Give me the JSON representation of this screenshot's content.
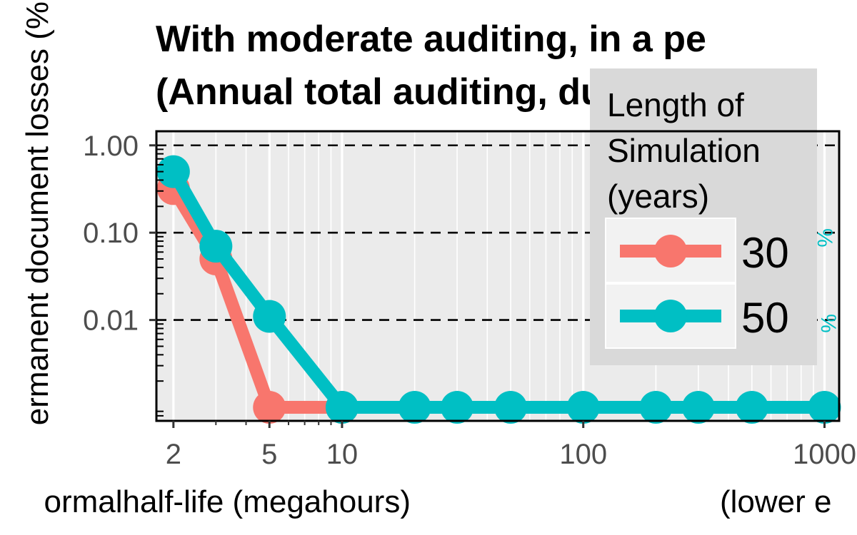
{
  "chart_data": {
    "type": "line",
    "title_lines": [
      "With moderate auditing, in a pe",
      "(Annual total auditing, duration"
    ],
    "xlabel_left": "ormalhalf-life (megahours)",
    "xlabel_right": "(lower e",
    "ylabel": "ermanent document losses (%",
    "x_scale": "log",
    "y_scale": "log",
    "x_ticks": [
      {
        "value": 2,
        "label": "2"
      },
      {
        "value": 5,
        "label": "5"
      },
      {
        "value": 10,
        "label": "10"
      },
      {
        "value": 100,
        "label": "100"
      },
      {
        "value": 1000,
        "label": "1000"
      }
    ],
    "y_ticks": [
      {
        "value": 1.0,
        "label": "1.00"
      },
      {
        "value": 0.1,
        "label": "0.10"
      },
      {
        "value": 0.01,
        "label": "0.01"
      }
    ],
    "xlim": [
      1.7,
      1150
    ],
    "ylim": [
      0.0007,
      1.45
    ],
    "grid": true,
    "legend": {
      "title_lines": [
        "Length of",
        "Simulation",
        "(years)"
      ],
      "placement": "right"
    },
    "series": [
      {
        "name": "30",
        "color": "#F8766D",
        "x": [
          2,
          3,
          5,
          10
        ],
        "y": [
          0.32,
          0.05,
          0.001,
          0.001
        ]
      },
      {
        "name": "50",
        "color": "#00BFC4",
        "x": [
          2,
          3,
          5,
          10,
          20,
          30,
          50,
          100,
          200,
          300,
          500,
          1000
        ],
        "y": [
          0.5,
          0.07,
          0.011,
          0.001,
          0.001,
          0.001,
          0.001,
          0.001,
          0.001,
          0.001,
          0.001,
          0.001
        ]
      }
    ],
    "annotations": [
      "%",
      "%"
    ]
  }
}
